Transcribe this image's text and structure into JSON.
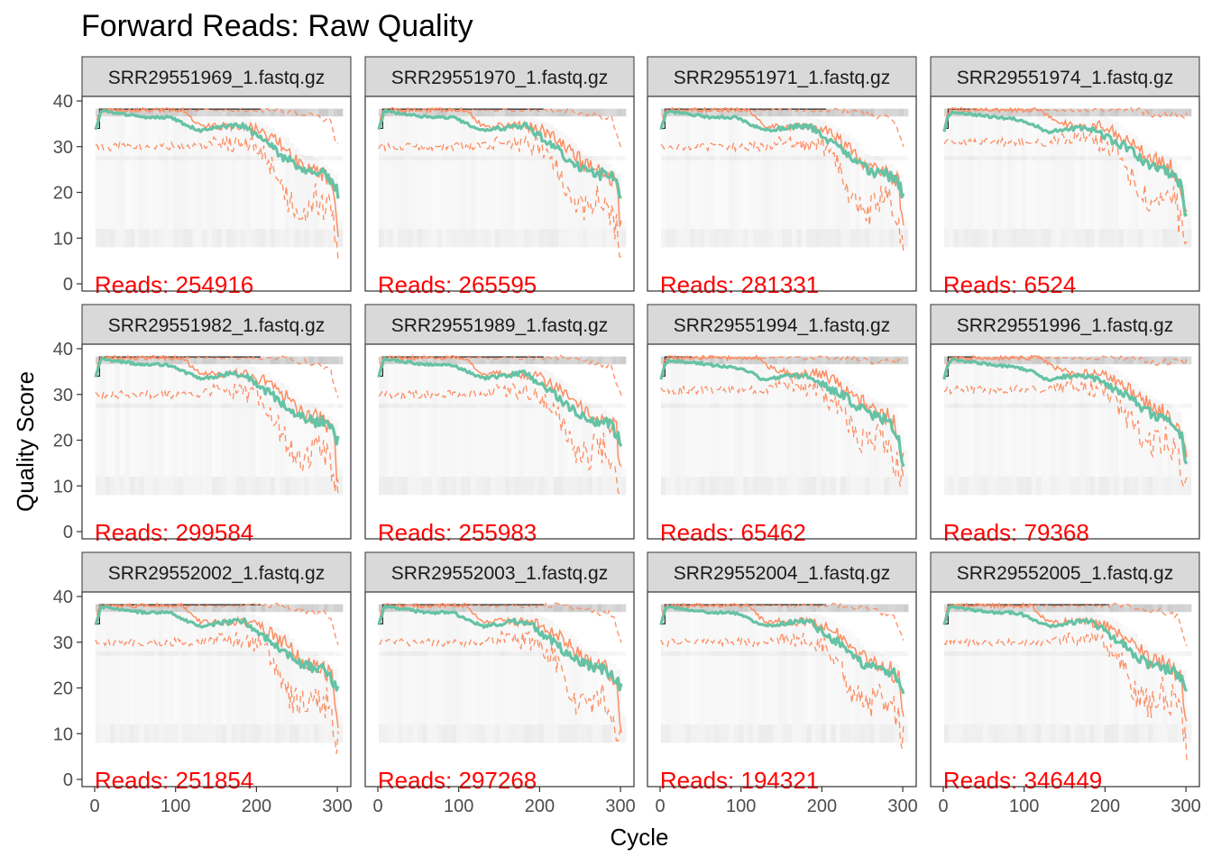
{
  "title": "Forward Reads: Raw Quality",
  "xlabel": "Cycle",
  "ylabel": "Quality Score",
  "colors": {
    "mean": "#66c2a5",
    "median_quartiles": "#fc8d62",
    "reads_label": "#ff0000",
    "strip_fill": "#d9d9d9",
    "heat": "#bfbfbf"
  },
  "chart_data": {
    "type": "heatmap",
    "facet_layout": {
      "rows": 3,
      "cols": 4
    },
    "xlim": [
      0,
      301
    ],
    "ylim": [
      0,
      40
    ],
    "x_ticks": [
      0,
      100,
      200,
      300
    ],
    "y_ticks": [
      0,
      10,
      20,
      30,
      40
    ],
    "grid": false,
    "reads_prefix": "Reads:  ",
    "panels": [
      {
        "sample": "SRR29551969_1.fastq.gz",
        "reads": "254916",
        "profile": "A"
      },
      {
        "sample": "SRR29551970_1.fastq.gz",
        "reads": "265595",
        "profile": "A"
      },
      {
        "sample": "SRR29551971_1.fastq.gz",
        "reads": "281331",
        "profile": "A"
      },
      {
        "sample": "SRR29551974_1.fastq.gz",
        "reads": "6524",
        "profile": "B"
      },
      {
        "sample": "SRR29551982_1.fastq.gz",
        "reads": "299584",
        "profile": "A"
      },
      {
        "sample": "SRR29551989_1.fastq.gz",
        "reads": "255983",
        "profile": "A"
      },
      {
        "sample": "SRR29551994_1.fastq.gz",
        "reads": "65462",
        "profile": "B"
      },
      {
        "sample": "SRR29551996_1.fastq.gz",
        "reads": "79368",
        "profile": "B"
      },
      {
        "sample": "SRR29552002_1.fastq.gz",
        "reads": "251854",
        "profile": "A"
      },
      {
        "sample": "SRR29552003_1.fastq.gz",
        "reads": "297268",
        "profile": "A"
      },
      {
        "sample": "SRR29552004_1.fastq.gz",
        "reads": "194321",
        "profile": "A"
      },
      {
        "sample": "SRR29552005_1.fastq.gz",
        "reads": "346449",
        "profile": "A"
      }
    ],
    "profiles": {
      "A": {
        "mean": [
          [
            1,
            34
          ],
          [
            5,
            36
          ],
          [
            8,
            37.8
          ],
          [
            20,
            37.5
          ],
          [
            40,
            37
          ],
          [
            60,
            36.5
          ],
          [
            80,
            36.5
          ],
          [
            95,
            36.3
          ],
          [
            110,
            35
          ],
          [
            130,
            33.5
          ],
          [
            150,
            34
          ],
          [
            170,
            34.5
          ],
          [
            185,
            34.5
          ],
          [
            195,
            33
          ],
          [
            210,
            31
          ],
          [
            220,
            30
          ],
          [
            230,
            28
          ],
          [
            240,
            27
          ],
          [
            250,
            25.5
          ],
          [
            260,
            25
          ],
          [
            270,
            24
          ],
          [
            280,
            24
          ],
          [
            290,
            23
          ],
          [
            300,
            20
          ]
        ],
        "median": [
          [
            1,
            34
          ],
          [
            5,
            37
          ],
          [
            8,
            38
          ],
          [
            110,
            38
          ],
          [
            120,
            36
          ],
          [
            130,
            34.5
          ],
          [
            180,
            34.5
          ],
          [
            195,
            34
          ],
          [
            210,
            33
          ],
          [
            225,
            31
          ],
          [
            235,
            30
          ],
          [
            245,
            28
          ],
          [
            255,
            26
          ],
          [
            265,
            26
          ],
          [
            275,
            25
          ],
          [
            285,
            24
          ],
          [
            295,
            22
          ],
          [
            300,
            12
          ]
        ],
        "q25": [
          [
            130,
            30
          ],
          [
            150,
            31
          ],
          [
            200,
            30
          ],
          [
            220,
            26
          ],
          [
            230,
            22
          ],
          [
            240,
            18
          ],
          [
            250,
            17
          ],
          [
            260,
            16
          ],
          [
            270,
            19
          ],
          [
            280,
            18
          ],
          [
            290,
            16
          ],
          [
            300,
            8
          ]
        ],
        "q75": [
          [
            1,
            34
          ],
          [
            5,
            38
          ],
          [
            200,
            38
          ],
          [
            230,
            38
          ],
          [
            260,
            37
          ],
          [
            290,
            36
          ],
          [
            300,
            30
          ]
        ]
      },
      "B": {
        "mean": [
          [
            1,
            33.5
          ],
          [
            5,
            36
          ],
          [
            10,
            37.5
          ],
          [
            40,
            37
          ],
          [
            60,
            36.5
          ],
          [
            90,
            36
          ],
          [
            110,
            35
          ],
          [
            130,
            33
          ],
          [
            150,
            34
          ],
          [
            180,
            34
          ],
          [
            195,
            33
          ],
          [
            210,
            31
          ],
          [
            225,
            30
          ],
          [
            240,
            28
          ],
          [
            255,
            26
          ],
          [
            270,
            25
          ],
          [
            285,
            24
          ],
          [
            295,
            21
          ],
          [
            300,
            15
          ]
        ],
        "median": [
          [
            1,
            33.5
          ],
          [
            5,
            37
          ],
          [
            10,
            38
          ],
          [
            120,
            38
          ],
          [
            135,
            36
          ],
          [
            160,
            34.5
          ],
          [
            200,
            34.5
          ],
          [
            215,
            33
          ],
          [
            230,
            31
          ],
          [
            245,
            29
          ],
          [
            260,
            27
          ],
          [
            275,
            26
          ],
          [
            290,
            24
          ],
          [
            300,
            16
          ]
        ],
        "q25": [
          [
            130,
            31
          ],
          [
            160,
            32
          ],
          [
            200,
            31
          ],
          [
            220,
            27
          ],
          [
            240,
            22
          ],
          [
            255,
            19
          ],
          [
            270,
            20
          ],
          [
            285,
            18
          ],
          [
            300,
            10
          ]
        ],
        "q75": [
          [
            1,
            34
          ],
          [
            6,
            38
          ],
          [
            240,
            38
          ],
          [
            260,
            37
          ],
          [
            300,
            37
          ]
        ]
      }
    }
  }
}
